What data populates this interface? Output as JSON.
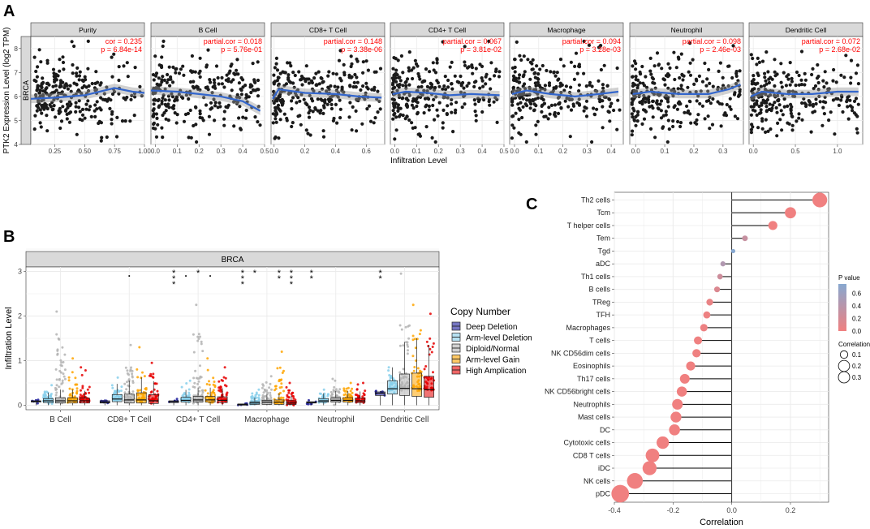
{
  "panel_labels": {
    "a": "A",
    "b": "B",
    "c": "C"
  },
  "colors": {
    "strip_bg": "#d9d9d9",
    "grid": "#ebebeb",
    "red": "#ff0000",
    "loess": "#3366cc",
    "point": "#1a1a1a",
    "deep_deletion": "#1a1a99",
    "arm_deletion": "#87cfeb",
    "diploid": "#b3b3b3",
    "arm_gain": "#ffa500",
    "high_amp": "#e60000",
    "pval_low": "#f08080",
    "pval_high": "#87a8d0"
  },
  "chart_data": [
    {
      "id": "A",
      "type": "scatter",
      "ylabel": "PTK2 Expression Level (log2 TPM)",
      "xlabel": "Infiltration Level",
      "row_label": "BRCA",
      "ylim": [
        4,
        8.5
      ],
      "yticks": [
        "4",
        "5",
        "6",
        "7",
        "8"
      ],
      "facets": [
        {
          "title": "Purity",
          "stat1": "cor = 0.235",
          "stat2": "p = 6.84e-14",
          "xlim": [
            0.05,
            1.0
          ],
          "xticks": [
            "0.25",
            "0.50",
            "0.75",
            "1.00"
          ],
          "xtick_values": [
            0.25,
            0.5,
            0.75,
            1.0
          ],
          "smooth": [
            [
              0.05,
              5.9
            ],
            [
              0.25,
              5.95
            ],
            [
              0.5,
              6.05
            ],
            [
              0.75,
              6.35
            ],
            [
              0.9,
              6.2
            ],
            [
              1.0,
              6.15
            ]
          ]
        },
        {
          "title": "B Cell",
          "stat1": "partial.cor = 0.018",
          "stat2": "p = 5.76e-01",
          "xlim": [
            -0.02,
            0.5
          ],
          "xticks": [
            "0.0",
            "0.1",
            "0.2",
            "0.3",
            "0.4",
            "0.5"
          ],
          "xtick_values": [
            0,
            0.1,
            0.2,
            0.3,
            0.4,
            0.5
          ],
          "smooth": [
            [
              -0.02,
              6.25
            ],
            [
              0.1,
              6.2
            ],
            [
              0.2,
              6.1
            ],
            [
              0.3,
              6.0
            ],
            [
              0.4,
              5.8
            ],
            [
              0.48,
              5.4
            ]
          ]
        },
        {
          "title": "CD8+ T Cell",
          "stat1": "partial.cor = 0.148",
          "stat2": "p = 3.38e-06",
          "xlim": [
            -0.02,
            0.72
          ],
          "xticks": [
            "0.0",
            "0.2",
            "0.4",
            "0.6"
          ],
          "xtick_values": [
            0,
            0.2,
            0.4,
            0.6
          ],
          "smooth": [
            [
              -0.01,
              5.9
            ],
            [
              0.03,
              6.3
            ],
            [
              0.2,
              6.15
            ],
            [
              0.4,
              6.1
            ],
            [
              0.55,
              6.0
            ],
            [
              0.7,
              5.95
            ]
          ]
        },
        {
          "title": "CD4+ T Cell",
          "stat1": "partial.cor = 0.067",
          "stat2": "p = 3.81e-02",
          "xlim": [
            -0.02,
            0.5
          ],
          "xticks": [
            "0.0",
            "0.1",
            "0.2",
            "0.3",
            "0.4",
            "0.5"
          ],
          "xtick_values": [
            0,
            0.1,
            0.2,
            0.3,
            0.4,
            0.5
          ],
          "smooth": [
            [
              -0.01,
              6.1
            ],
            [
              0.05,
              6.2
            ],
            [
              0.15,
              6.15
            ],
            [
              0.25,
              6.05
            ],
            [
              0.35,
              6.1
            ],
            [
              0.48,
              6.05
            ]
          ]
        },
        {
          "title": "Macrophage",
          "stat1": "partial.cor = 0.094",
          "stat2": "p = 3.28e-03",
          "xlim": [
            -0.02,
            0.45
          ],
          "xticks": [
            "0.0",
            "0.1",
            "0.2",
            "0.3",
            "0.4"
          ],
          "xtick_values": [
            0,
            0.1,
            0.2,
            0.3,
            0.4
          ],
          "smooth": [
            [
              -0.01,
              6.1
            ],
            [
              0.05,
              6.25
            ],
            [
              0.15,
              6.1
            ],
            [
              0.25,
              6.0
            ],
            [
              0.35,
              6.1
            ],
            [
              0.43,
              6.2
            ]
          ]
        },
        {
          "title": "Neutrophil",
          "stat1": "partial.cor = 0.098",
          "stat2": "p = 2.46e-03",
          "xlim": [
            -0.02,
            0.37
          ],
          "xticks": [
            "0.0",
            "0.1",
            "0.2",
            "0.3"
          ],
          "xtick_values": [
            0,
            0.1,
            0.2,
            0.3
          ],
          "smooth": [
            [
              -0.01,
              6.1
            ],
            [
              0.05,
              6.2
            ],
            [
              0.15,
              6.1
            ],
            [
              0.25,
              6.1
            ],
            [
              0.32,
              6.3
            ],
            [
              0.36,
              6.5
            ]
          ]
        },
        {
          "title": "Dendritic Cell",
          "stat1": "partial.cor = 0.072",
          "stat2": "p = 2.68e-02",
          "xlim": [
            -0.05,
            1.3
          ],
          "xticks": [
            "0.0",
            "0.5",
            "1.0"
          ],
          "xtick_values": [
            0,
            0.5,
            1.0
          ],
          "smooth": [
            [
              -0.03,
              6.0
            ],
            [
              0.1,
              6.2
            ],
            [
              0.4,
              6.1
            ],
            [
              0.7,
              6.1
            ],
            [
              1.0,
              6.2
            ],
            [
              1.25,
              6.2
            ]
          ]
        }
      ]
    },
    {
      "id": "B",
      "type": "box",
      "title": "BRCA",
      "ylabel": "Infiltration Level",
      "ylim": [
        -0.1,
        3.1
      ],
      "yticks": [
        "0",
        "1",
        "2",
        "3"
      ],
      "ytick_values": [
        0,
        1,
        2,
        3
      ],
      "categories": [
        "B Cell",
        "CD8+ T Cell",
        "CD4+ T Cell",
        "Macrophage",
        "Neutrophil",
        "Dendritic Cell"
      ],
      "legend_title": "Copy Number",
      "series_names": [
        "Deep Deletion",
        "Arm-level Deletion",
        "Diploid/Normal",
        "Arm-level Gain",
        "High Amplication"
      ],
      "medians": [
        [
          0.09,
          0.1,
          0.1,
          0.1,
          0.1
        ],
        [
          0.07,
          0.14,
          0.12,
          0.12,
          0.1
        ],
        [
          0.08,
          0.11,
          0.12,
          0.12,
          0.11
        ],
        [
          0.02,
          0.05,
          0.07,
          0.07,
          0.05
        ],
        [
          0.06,
          0.1,
          0.11,
          0.11,
          0.1
        ],
        [
          0.27,
          0.37,
          0.38,
          0.37,
          0.35
        ]
      ],
      "q1": [
        [
          0.08,
          0.06,
          0.05,
          0.05,
          0.05
        ],
        [
          0.05,
          0.08,
          0.05,
          0.05,
          0.04
        ],
        [
          0.06,
          0.07,
          0.07,
          0.07,
          0.06
        ],
        [
          0.01,
          0.02,
          0.02,
          0.02,
          0.02
        ],
        [
          0.05,
          0.07,
          0.07,
          0.07,
          0.06
        ],
        [
          0.22,
          0.25,
          0.22,
          0.2,
          0.18
        ]
      ],
      "q3": [
        [
          0.1,
          0.15,
          0.17,
          0.17,
          0.16
        ],
        [
          0.1,
          0.24,
          0.25,
          0.28,
          0.24
        ],
        [
          0.1,
          0.18,
          0.2,
          0.2,
          0.19
        ],
        [
          0.03,
          0.08,
          0.11,
          0.12,
          0.1
        ],
        [
          0.08,
          0.15,
          0.17,
          0.17,
          0.16
        ],
        [
          0.3,
          0.55,
          0.7,
          0.72,
          0.65
        ]
      ],
      "max": [
        [
          0.11,
          0.45,
          2.1,
          1.05,
          0.85
        ],
        [
          0.1,
          0.62,
          1.35,
          1.3,
          0.95
        ],
        [
          0.1,
          0.55,
          2.25,
          1.05,
          0.85
        ],
        [
          0.03,
          0.35,
          0.65,
          1.2,
          0.5
        ],
        [
          0.08,
          0.35,
          0.55,
          0.5,
          0.5
        ],
        [
          0.32,
          0.85,
          2.95,
          2.25,
          2.05
        ]
      ],
      "significance": [
        {
          "category": 1,
          "series": 2,
          "mark": "."
        },
        {
          "category": 2,
          "series": 0,
          "mark": "***"
        },
        {
          "category": 2,
          "series": 1,
          "mark": "."
        },
        {
          "category": 2,
          "series": 2,
          "mark": "*"
        },
        {
          "category": 2,
          "series": 3,
          "mark": "."
        },
        {
          "category": 3,
          "series": 0,
          "mark": "***"
        },
        {
          "category": 3,
          "series": 1,
          "mark": "*"
        },
        {
          "category": 3,
          "series": 3,
          "mark": "**"
        },
        {
          "category": 3,
          "series": 4,
          "mark": "***"
        },
        {
          "category": 4,
          "series": 0,
          "mark": "**"
        },
        {
          "category": 5,
          "series": 0,
          "mark": "**"
        }
      ]
    },
    {
      "id": "C",
      "type": "lollipop",
      "xlabel": "Correlation",
      "xlim": [
        -0.4,
        0.33
      ],
      "xticks": [
        "-0.4",
        "-0.2",
        "0.0",
        "0.2"
      ],
      "xtick_values": [
        -0.4,
        -0.2,
        0.0,
        0.2
      ],
      "legend_pvalue_title": "P value",
      "legend_pvalue_ticks": [
        "0.6",
        "0.4",
        "0.2",
        "0.0"
      ],
      "legend_pvalue_values": [
        0.6,
        0.4,
        0.2,
        0.0
      ],
      "legend_size_title": "Correlation",
      "legend_size_labels": [
        "0.1",
        "0.2",
        "0.3"
      ],
      "legend_size_values": [
        0.1,
        0.2,
        0.3
      ],
      "categories": [
        "Th2 cells",
        "Tcm",
        "T helper cells",
        "Tem",
        "Tgd",
        "aDC",
        "Th1 cells",
        "B cells",
        "TReg",
        "TFH",
        "Macrophages",
        "T cells",
        "NK CD56dim cells",
        "Eosinophils",
        "Th17 cells",
        "NK CD56bright cells",
        "Neutrophils",
        "Mast cells",
        "DC",
        "Cytotoxic cells",
        "CD8 T cells",
        "iDC",
        "NK cells",
        "pDC"
      ],
      "values": [
        0.3,
        0.2,
        0.14,
        0.045,
        0.005,
        -0.03,
        -0.04,
        -0.05,
        -0.075,
        -0.085,
        -0.095,
        -0.115,
        -0.12,
        -0.14,
        -0.16,
        -0.17,
        -0.185,
        -0.19,
        -0.195,
        -0.235,
        -0.27,
        -0.28,
        -0.33,
        -0.38
      ],
      "pvalues": [
        0.0,
        0.0,
        0.0,
        0.3,
        0.8,
        0.45,
        0.25,
        0.15,
        0.05,
        0.02,
        0.02,
        0.01,
        0.01,
        0.0,
        0.0,
        0.0,
        0.0,
        0.0,
        0.0,
        0.0,
        0.0,
        0.0,
        0.0,
        0.0
      ]
    }
  ]
}
